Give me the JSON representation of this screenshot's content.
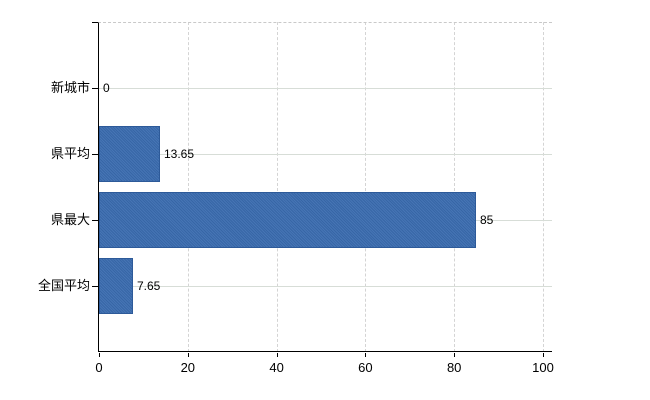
{
  "chart_data": {
    "type": "bar",
    "orientation": "horizontal",
    "title": "",
    "categories": [
      "新城市",
      "県平均",
      "県最大",
      "全国平均"
    ],
    "values": [
      0,
      13.65,
      85,
      7.65
    ],
    "value_labels": [
      "0",
      "13.65",
      "85",
      "7.65"
    ],
    "xlabel": "",
    "ylabel": "",
    "xlim": [
      0,
      100
    ],
    "x_ticks": [
      0,
      20,
      40,
      60,
      80,
      100
    ],
    "x_tick_labels": [
      "0",
      "20",
      "40",
      "60",
      "80",
      "100"
    ],
    "legend": "none",
    "grid": "on",
    "colors": {
      "bar_fill": "#3a6cb0",
      "bar_border": "#2d5a99",
      "vertical_grid": "#d4d4d4",
      "horizontal_grid": "#d7ddd7",
      "axis": "#000000",
      "text": "#000000",
      "background": "#ffffff"
    }
  }
}
